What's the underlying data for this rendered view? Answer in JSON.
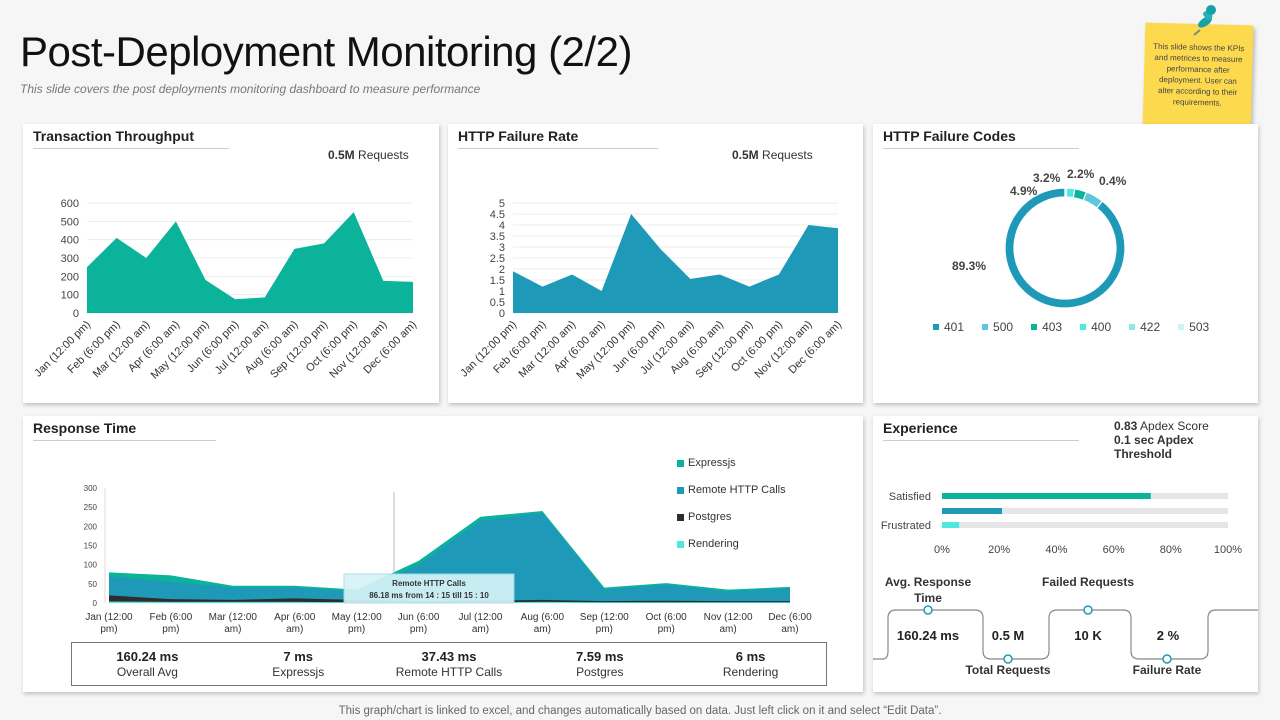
{
  "header": {
    "title": "Post-Deployment Monitoring (2/2)",
    "subtitle": "This slide covers the post deployments monitoring dashboard  to measure performance"
  },
  "note": {
    "text": "This slide shows the KPIs and metrices  to measure performance after deployment. User can alter according to their requirements."
  },
  "footer": {
    "text": "This graph/chart is linked to excel,  and changes automatically based on data. Just left click on it and select “Edit Data”."
  },
  "colors": {
    "teal": "#0bb39a",
    "blue": "#1e9ab8",
    "dark": "#2d2d2d",
    "cyan": "#4de8e0",
    "light": "#8ee8e8",
    "pale": "#c9f4f4",
    "grey_bar": "#e6e6e6"
  },
  "throughput": {
    "title": "Transaction Throughput",
    "requests_value": "0.5M",
    "requests_label": "Requests"
  },
  "failure_rate": {
    "title": "HTTP Failure Rate",
    "requests_value": "0.5M",
    "requests_label": "Requests"
  },
  "failure_codes": {
    "title": "HTTP Failure Codes"
  },
  "response": {
    "title": "Response Time",
    "tooltip_title": "Remote HTTP Calls",
    "tooltip_text": "86.18 ms from 14 : 15 till 15 : 10",
    "stats": [
      {
        "value": "160.24 ms",
        "label": "Overall Avg"
      },
      {
        "value": "7 ms",
        "label": "Expressjs"
      },
      {
        "value": "37.43 ms",
        "label": "Remote HTTP Calls"
      },
      {
        "value": "7.59 ms",
        "label": "Postgres"
      },
      {
        "value": "6 ms",
        "label": "Rendering"
      }
    ]
  },
  "experience": {
    "title": "Experience",
    "apdex_value": "0.83",
    "apdex_label": "Apdex Score",
    "threshold_text": "0.1 sec Apdex Threshold",
    "flow": [
      {
        "label": "Avg. Response Time",
        "value": "160.24 ms"
      },
      {
        "label": "Total Requests",
        "value": "0.5 M"
      },
      {
        "label": "Failed Requests",
        "value": "10 K"
      },
      {
        "label": "Failure Rate",
        "value": "2 %"
      }
    ]
  },
  "chart_data": [
    {
      "id": "throughput",
      "type": "area",
      "title": "Transaction Throughput",
      "categories": [
        "Jan (12:00 pm)",
        "Feb (6:00 pm)",
        "Mar (12:00 am)",
        "Apr (6:00 am)",
        "May (12:00 pm)",
        "Jun (6:00 pm)",
        "Jul (12:00 am)",
        "Aug (6:00 am)",
        "Sep (12:00 pm)",
        "Oct (6:00 pm)",
        "Nov (12:00 am)",
        "Dec (6:00 am)"
      ],
      "values": [
        250,
        410,
        300,
        500,
        180,
        75,
        85,
        350,
        380,
        550,
        175,
        170
      ],
      "ylim": [
        0,
        600
      ],
      "yticks": [
        0,
        100,
        200,
        300,
        400,
        500,
        600
      ],
      "color": "#0bb39a"
    },
    {
      "id": "failure_rate",
      "type": "area",
      "title": "HTTP Failure Rate",
      "categories": [
        "Jan (12:00 pm)",
        "Feb (6:00 pm)",
        "Mar (12:00 am)",
        "Apr (6:00 am)",
        "May (12:00 pm)",
        "Jun (6:00 pm)",
        "Jul (12:00 am)",
        "Aug (6:00 am)",
        "Sep (12:00 pm)",
        "Oct (6:00 pm)",
        "Nov (12:00 am)",
        "Dec (6:00 am)"
      ],
      "values": [
        1.9,
        1.2,
        1.75,
        1.0,
        4.5,
        2.9,
        1.55,
        1.75,
        1.2,
        1.75,
        4.0,
        3.85
      ],
      "ylim": [
        0,
        5
      ],
      "yticks": [
        0,
        0.5,
        1,
        1.5,
        2,
        2.5,
        3,
        3.5,
        4,
        4.5,
        5
      ],
      "color": "#1e9ab8"
    },
    {
      "id": "failure_codes",
      "type": "pie",
      "title": "HTTP Failure Codes",
      "labels": [
        "401",
        "500",
        "403",
        "400",
        "422",
        "503"
      ],
      "values": [
        89.3,
        4.9,
        3.2,
        2.2,
        0.4,
        0.0
      ],
      "value_labels": [
        "89.3%",
        "4.9%",
        "3.2%",
        "2.2%",
        "0.4%",
        ""
      ],
      "colors": [
        "#1e9ab8",
        "#5cc8e0",
        "#0bb39a",
        "#4de8e0",
        "#8ee8e8",
        "#c9f4f4"
      ]
    },
    {
      "id": "response",
      "type": "area",
      "title": "Response Time",
      "categories": [
        "Jan (12:00 pm)",
        "Feb (6:00 pm)",
        "Mar (12:00 am)",
        "Apr (6:00 am)",
        "May (12:00 pm)",
        "Jun (6:00 pm)",
        "Jul (12:00 am)",
        "Aug (6:00 am)",
        "Sep (12:00 pm)",
        "Oct (6:00 pm)",
        "Nov (12:00 am)",
        "Dec (6:00 am)"
      ],
      "ylim": [
        0,
        300
      ],
      "yticks": [
        0,
        50,
        100,
        150,
        200,
        250,
        300
      ],
      "series": [
        {
          "name": "Expressjs",
          "color": "#0bb39a",
          "values": [
            80,
            72,
            45,
            45,
            35,
            110,
            225,
            240,
            40,
            52,
            35,
            42
          ]
        },
        {
          "name": "Remote HTTP Calls",
          "color": "#1e9ab8",
          "values": [
            70,
            55,
            40,
            40,
            30,
            100,
            215,
            235,
            35,
            48,
            30,
            38
          ]
        },
        {
          "name": "Postgres",
          "color": "#2d2d2d",
          "values": [
            20,
            10,
            8,
            12,
            8,
            5,
            6,
            8,
            5,
            6,
            5,
            5
          ]
        },
        {
          "name": "Rendering",
          "color": "#4de8e0",
          "values": [
            4,
            3,
            3,
            3,
            2,
            2,
            2,
            3,
            2,
            2,
            2,
            2
          ]
        }
      ]
    },
    {
      "id": "experience",
      "type": "bar",
      "orientation": "horizontal",
      "title": "Experience",
      "categories": [
        "Satisfied",
        "Frustrated"
      ],
      "series": [
        {
          "name": "primary",
          "values": [
            73,
            6
          ],
          "colors": [
            "#0bb39a",
            "#4de8e0"
          ]
        },
        {
          "name": "secondary",
          "values": [
            21,
            0
          ],
          "colors": [
            "#1e9ab8",
            "#1e9ab8"
          ]
        }
      ],
      "xlim": [
        0,
        100
      ],
      "xticks": [
        "0%",
        "20%",
        "40%",
        "60%",
        "80%",
        "100%"
      ]
    }
  ]
}
